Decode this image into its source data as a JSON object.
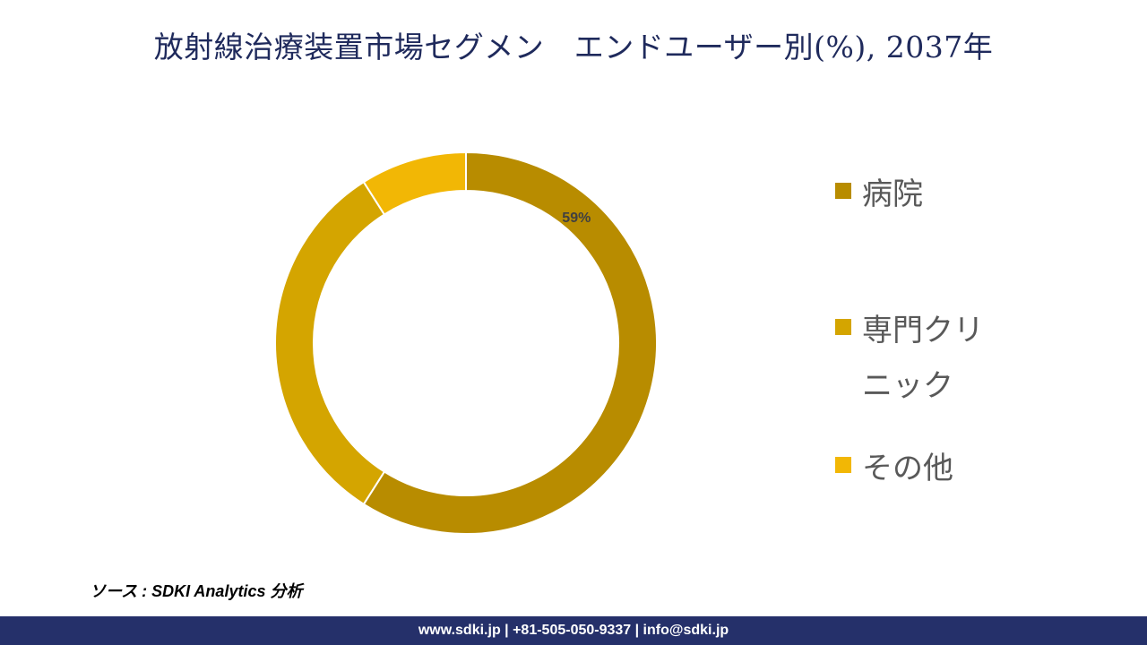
{
  "title": "放射線治療装置市場セグメン　エンドユーザー別(%), 2037年",
  "source": "ソース : SDKI Analytics 分析",
  "footer": "www.sdki.jp | +81-505-050-9337 | info@sdki.jp",
  "chart_data": {
    "type": "donut",
    "title": "放射線治療装置市場セグメン　エンドユーザー別(%), 2037年",
    "legend_position": "right",
    "series": [
      {
        "name": "病院",
        "value": 59,
        "label": "59%",
        "color": "#b88c00"
      },
      {
        "name": "専門クリニック",
        "value": 32,
        "label": "",
        "color": "#d4a500"
      },
      {
        "name": "その他",
        "value": 9,
        "label": "",
        "color": "#f2b705"
      }
    ]
  }
}
